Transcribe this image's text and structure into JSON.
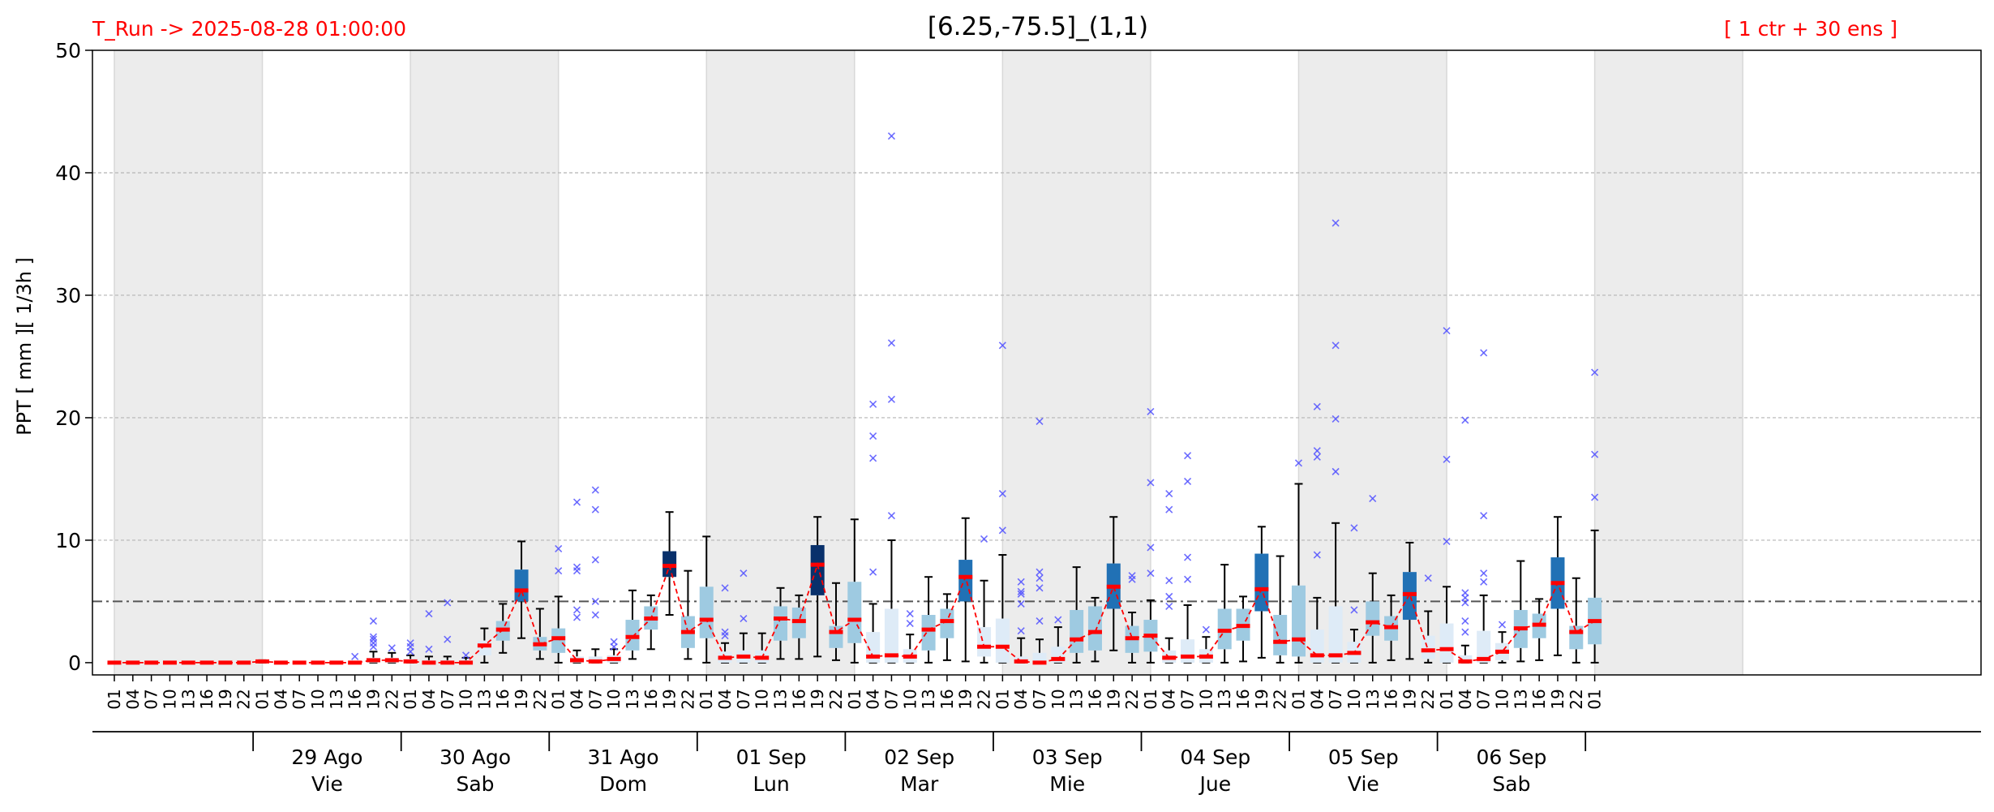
{
  "header": {
    "run_label": "T_Run -> 2025-08-28  01:00:00",
    "title": "[6.25,-75.5]_(1,1)",
    "members_label": "[ 1 ctr + 30 ens ]"
  },
  "colors": {
    "header_text": "#ff0000",
    "median": "#ff0000",
    "mean_line": "#ff0000",
    "outlier": "#5555ff",
    "night_shade": "#ececec",
    "threshold_line": "#555555",
    "box_light": "#deebf7",
    "box_mid": "#9ecae1",
    "box_dark": "#2171b5",
    "box_darkest": "#08306b"
  },
  "chart_data": {
    "type": "boxplot",
    "ylabel": "PPT  [ mm ][ 1/3h ]",
    "ylim": [
      -1,
      50
    ],
    "yticks": [
      0,
      10,
      20,
      30,
      40,
      50
    ],
    "grid": "horizontal-dashed",
    "threshold": 5,
    "hour_labels": [
      "01",
      "04",
      "07",
      "10",
      "13",
      "16",
      "19",
      "22"
    ],
    "start_hour_index": 0,
    "days": [
      {
        "date": "",
        "weekday": ""
      },
      {
        "date": "29 Ago",
        "weekday": "Vie"
      },
      {
        "date": "30 Ago",
        "weekday": "Sab"
      },
      {
        "date": "31 Ago",
        "weekday": "Dom"
      },
      {
        "date": "01 Sep",
        "weekday": "Lun"
      },
      {
        "date": "02 Sep",
        "weekday": "Mar"
      },
      {
        "date": "03 Sep",
        "weekday": "Mie"
      },
      {
        "date": "04 Sep",
        "weekday": "Jue"
      },
      {
        "date": "05 Sep",
        "weekday": "Vie"
      },
      {
        "date": "06 Sep",
        "weekday": "Sab"
      },
      {
        "date": "",
        "weekday": ""
      }
    ],
    "steps": [
      {
        "med": 0,
        "q1": 0,
        "q3": 0,
        "wlo": 0,
        "whi": 0,
        "out": []
      },
      {
        "med": 0,
        "q1": 0,
        "q3": 0,
        "wlo": 0,
        "whi": 0,
        "out": []
      },
      {
        "med": 0,
        "q1": 0,
        "q3": 0,
        "wlo": 0,
        "whi": 0,
        "out": []
      },
      {
        "med": 0,
        "q1": 0,
        "q3": 0,
        "wlo": 0,
        "whi": 0,
        "out": []
      },
      {
        "med": 0,
        "q1": 0,
        "q3": 0,
        "wlo": 0,
        "whi": 0,
        "out": []
      },
      {
        "med": 0,
        "q1": 0,
        "q3": 0,
        "wlo": 0,
        "whi": 0,
        "out": []
      },
      {
        "med": 0,
        "q1": 0,
        "q3": 0,
        "wlo": 0,
        "whi": 0,
        "out": []
      },
      {
        "med": 0,
        "q1": 0,
        "q3": 0,
        "wlo": 0,
        "whi": 0,
        "out": []
      },
      {
        "med": 0.1,
        "q1": 0,
        "q3": 0.1,
        "wlo": 0,
        "whi": 0.2,
        "out": []
      },
      {
        "med": 0,
        "q1": 0,
        "q3": 0,
        "wlo": 0,
        "whi": 0,
        "out": []
      },
      {
        "med": 0,
        "q1": 0,
        "q3": 0,
        "wlo": 0,
        "whi": 0,
        "out": []
      },
      {
        "med": 0,
        "q1": 0,
        "q3": 0,
        "wlo": 0,
        "whi": 0,
        "out": []
      },
      {
        "med": 0,
        "q1": 0,
        "q3": 0,
        "wlo": 0,
        "whi": 0,
        "out": []
      },
      {
        "med": 0,
        "q1": 0,
        "q3": 0,
        "wlo": 0,
        "whi": 0,
        "out": [
          0.5
        ]
      },
      {
        "med": 0.2,
        "q1": 0,
        "q3": 0.4,
        "wlo": 0,
        "whi": 0.9,
        "out": [
          1.3,
          1.6,
          1.9,
          2.1,
          3.4
        ]
      },
      {
        "med": 0.2,
        "q1": 0,
        "q3": 0.4,
        "wlo": 0,
        "whi": 0.8,
        "out": [
          1.2
        ]
      },
      {
        "med": 0.1,
        "q1": 0,
        "q3": 0.3,
        "wlo": 0,
        "whi": 0.6,
        "out": [
          0.9,
          1.3,
          1.6
        ]
      },
      {
        "med": 0,
        "q1": 0,
        "q3": 0.2,
        "wlo": 0,
        "whi": 0.5,
        "out": [
          1.1,
          4.0
        ]
      },
      {
        "med": 0,
        "q1": 0,
        "q3": 0.2,
        "wlo": 0,
        "whi": 0.5,
        "out": [
          1.9,
          4.9
        ]
      },
      {
        "med": 0,
        "q1": 0,
        "q3": 0.2,
        "wlo": 0,
        "whi": 0.4,
        "out": [
          0.6
        ]
      },
      {
        "med": 1.4,
        "q1": 0.6,
        "q3": 1.8,
        "wlo": 0,
        "whi": 2.8,
        "out": []
      },
      {
        "med": 2.7,
        "q1": 1.8,
        "q3": 3.4,
        "wlo": 0.8,
        "whi": 4.8,
        "out": []
      },
      {
        "med": 5.9,
        "q1": 5.0,
        "q3": 7.6,
        "wlo": 2.0,
        "whi": 9.9,
        "out": []
      },
      {
        "med": 1.5,
        "q1": 1.0,
        "q3": 2.1,
        "wlo": 0.3,
        "whi": 4.4,
        "out": []
      },
      {
        "med": 2.0,
        "q1": 0.8,
        "q3": 2.8,
        "wlo": 0,
        "whi": 5.4,
        "out": [
          7.5,
          9.3
        ]
      },
      {
        "med": 0.2,
        "q1": 0,
        "q3": 0.5,
        "wlo": 0,
        "whi": 1.0,
        "out": [
          3.7,
          4.3,
          7.5,
          7.8,
          13.1
        ]
      },
      {
        "med": 0.1,
        "q1": 0,
        "q3": 0.5,
        "wlo": 0,
        "whi": 1.1,
        "out": [
          3.9,
          5.0,
          8.4,
          12.5,
          14.1
        ]
      },
      {
        "med": 0.3,
        "q1": 0,
        "q3": 0.6,
        "wlo": 0,
        "whi": 1.1,
        "out": [
          1.3,
          1.7
        ]
      },
      {
        "med": 2.1,
        "q1": 1.0,
        "q3": 3.5,
        "wlo": 0.3,
        "whi": 5.9,
        "out": []
      },
      {
        "med": 3.6,
        "q1": 2.7,
        "q3": 4.6,
        "wlo": 1.1,
        "whi": 5.5,
        "out": []
      },
      {
        "med": 7.9,
        "q1": 7.0,
        "q3": 9.1,
        "wlo": 3.9,
        "whi": 12.3,
        "out": []
      },
      {
        "med": 2.5,
        "q1": 1.2,
        "q3": 3.8,
        "wlo": 0.3,
        "whi": 7.5,
        "out": []
      },
      {
        "med": 3.5,
        "q1": 2.0,
        "q3": 6.2,
        "wlo": 0,
        "whi": 10.3,
        "out": []
      },
      {
        "med": 0.4,
        "q1": 0,
        "q3": 0.9,
        "wlo": 0,
        "whi": 1.6,
        "out": [
          2.2,
          2.5,
          6.1
        ]
      },
      {
        "med": 0.5,
        "q1": 0,
        "q3": 1.0,
        "wlo": 0,
        "whi": 2.4,
        "out": [
          3.6,
          7.3
        ]
      },
      {
        "med": 0.4,
        "q1": 0,
        "q3": 1.0,
        "wlo": 0,
        "whi": 2.4,
        "out": []
      },
      {
        "med": 3.6,
        "q1": 1.8,
        "q3": 4.6,
        "wlo": 0.3,
        "whi": 6.1,
        "out": []
      },
      {
        "med": 3.4,
        "q1": 2.0,
        "q3": 4.5,
        "wlo": 0.3,
        "whi": 5.5,
        "out": []
      },
      {
        "med": 8.0,
        "q1": 5.5,
        "q3": 9.6,
        "wlo": 0.5,
        "whi": 11.9,
        "out": []
      },
      {
        "med": 2.5,
        "q1": 1.2,
        "q3": 3.0,
        "wlo": 0.2,
        "whi": 6.5,
        "out": []
      },
      {
        "med": 3.5,
        "q1": 1.6,
        "q3": 6.6,
        "wlo": 0,
        "whi": 11.7,
        "out": []
      },
      {
        "med": 0.5,
        "q1": 0,
        "q3": 2.5,
        "wlo": 0,
        "whi": 4.8,
        "out": [
          7.4,
          16.7,
          18.5,
          21.1
        ]
      },
      {
        "med": 0.6,
        "q1": 0,
        "q3": 4.4,
        "wlo": 0,
        "whi": 10.0,
        "out": [
          12.0,
          21.5,
          26.1,
          43.0
        ]
      },
      {
        "med": 0.5,
        "q1": 0,
        "q3": 1.1,
        "wlo": 0,
        "whi": 2.3,
        "out": [
          3.2,
          4.0
        ]
      },
      {
        "med": 2.7,
        "q1": 1.0,
        "q3": 3.9,
        "wlo": 0,
        "whi": 7.0,
        "out": []
      },
      {
        "med": 3.4,
        "q1": 2.0,
        "q3": 4.4,
        "wlo": 0.2,
        "whi": 5.6,
        "out": []
      },
      {
        "med": 7.0,
        "q1": 5.0,
        "q3": 8.4,
        "wlo": 0.1,
        "whi": 11.8,
        "out": []
      },
      {
        "med": 1.3,
        "q1": 0.5,
        "q3": 2.9,
        "wlo": 0,
        "whi": 6.7,
        "out": [
          10.1
        ]
      },
      {
        "med": 1.3,
        "q1": 0,
        "q3": 3.6,
        "wlo": 0,
        "whi": 8.8,
        "out": [
          10.8,
          13.8,
          25.9
        ]
      },
      {
        "med": 0.1,
        "q1": 0,
        "q3": 0.5,
        "wlo": 0,
        "whi": 2.0,
        "out": [
          2.6,
          4.8,
          5.6,
          5.8,
          6.6
        ]
      },
      {
        "med": 0,
        "q1": 0,
        "q3": 0.8,
        "wlo": 0,
        "whi": 1.9,
        "out": [
          3.4,
          6.1,
          6.9,
          7.4,
          19.7
        ]
      },
      {
        "med": 0.3,
        "q1": 0,
        "q3": 1.3,
        "wlo": 0,
        "whi": 2.9,
        "out": [
          3.5
        ]
      },
      {
        "med": 1.9,
        "q1": 0.8,
        "q3": 4.3,
        "wlo": 0,
        "whi": 7.8,
        "out": []
      },
      {
        "med": 2.5,
        "q1": 1.0,
        "q3": 4.6,
        "wlo": 0.1,
        "whi": 5.3,
        "out": []
      },
      {
        "med": 6.2,
        "q1": 4.4,
        "q3": 8.1,
        "wlo": 1.0,
        "whi": 11.9,
        "out": []
      },
      {
        "med": 2.0,
        "q1": 0.8,
        "q3": 3.0,
        "wlo": 0,
        "whi": 4.1,
        "out": [
          6.8,
          7.1
        ]
      },
      {
        "med": 2.2,
        "q1": 0.9,
        "q3": 3.5,
        "wlo": 0,
        "whi": 5.1,
        "out": [
          7.3,
          9.4,
          14.7,
          20.5
        ]
      },
      {
        "med": 0.4,
        "q1": 0,
        "q3": 1.0,
        "wlo": 0,
        "whi": 2.0,
        "out": [
          4.6,
          5.4,
          6.7,
          12.5,
          13.8
        ]
      },
      {
        "med": 0.5,
        "q1": 0,
        "q3": 1.9,
        "wlo": 0,
        "whi": 4.7,
        "out": [
          6.8,
          8.6,
          14.8,
          16.9
        ]
      },
      {
        "med": 0.5,
        "q1": 0,
        "q3": 1.1,
        "wlo": 0,
        "whi": 2.1,
        "out": [
          2.7
        ]
      },
      {
        "med": 2.6,
        "q1": 1.1,
        "q3": 4.4,
        "wlo": 0,
        "whi": 8.0,
        "out": []
      },
      {
        "med": 3.0,
        "q1": 1.8,
        "q3": 4.4,
        "wlo": 0.1,
        "whi": 5.4,
        "out": []
      },
      {
        "med": 6.0,
        "q1": 4.2,
        "q3": 8.9,
        "wlo": 0.4,
        "whi": 11.1,
        "out": []
      },
      {
        "med": 1.7,
        "q1": 0.6,
        "q3": 3.9,
        "wlo": 0,
        "whi": 8.7,
        "out": []
      },
      {
        "med": 1.9,
        "q1": 0.5,
        "q3": 6.3,
        "wlo": 0,
        "whi": 14.6,
        "out": [
          16.3
        ]
      },
      {
        "med": 0.6,
        "q1": 0,
        "q3": 2.7,
        "wlo": 0,
        "whi": 5.3,
        "out": [
          8.8,
          16.8,
          17.3,
          20.9
        ]
      },
      {
        "med": 0.6,
        "q1": 0,
        "q3": 4.6,
        "wlo": 0,
        "whi": 11.4,
        "out": [
          15.6,
          19.9,
          25.9,
          35.9
        ]
      },
      {
        "med": 0.8,
        "q1": 0,
        "q3": 1.7,
        "wlo": 0,
        "whi": 2.7,
        "out": [
          4.3,
          11.0
        ]
      },
      {
        "med": 3.3,
        "q1": 2.2,
        "q3": 5.0,
        "wlo": 0,
        "whi": 7.3,
        "out": [
          13.4
        ]
      },
      {
        "med": 2.9,
        "q1": 1.8,
        "q3": 3.8,
        "wlo": 0.2,
        "whi": 5.5,
        "out": []
      },
      {
        "med": 5.6,
        "q1": 3.5,
        "q3": 7.4,
        "wlo": 0.3,
        "whi": 9.8,
        "out": []
      },
      {
        "med": 1.0,
        "q1": 0.3,
        "q3": 2.2,
        "wlo": 0,
        "whi": 4.2,
        "out": [
          6.9
        ]
      },
      {
        "med": 1.1,
        "q1": 0,
        "q3": 3.2,
        "wlo": 0,
        "whi": 6.2,
        "out": [
          9.9,
          16.6,
          27.1
        ]
      },
      {
        "med": 0.1,
        "q1": 0,
        "q3": 0.6,
        "wlo": 0,
        "whi": 1.4,
        "out": [
          2.5,
          3.4,
          4.9,
          5.3,
          5.7,
          19.8
        ]
      },
      {
        "med": 0.3,
        "q1": 0,
        "q3": 2.6,
        "wlo": 0,
        "whi": 5.5,
        "out": [
          6.6,
          7.3,
          12.0,
          25.3
        ]
      },
      {
        "med": 0.9,
        "q1": 0.2,
        "q3": 1.6,
        "wlo": 0,
        "whi": 2.5,
        "out": [
          3.1
        ]
      },
      {
        "med": 2.8,
        "q1": 1.2,
        "q3": 4.3,
        "wlo": 0.1,
        "whi": 8.3,
        "out": []
      },
      {
        "med": 3.1,
        "q1": 2.0,
        "q3": 4.0,
        "wlo": 0.2,
        "whi": 5.2,
        "out": []
      },
      {
        "med": 6.5,
        "q1": 4.4,
        "q3": 8.6,
        "wlo": 0.6,
        "whi": 11.9,
        "out": []
      },
      {
        "med": 2.5,
        "q1": 1.1,
        "q3": 3.0,
        "wlo": 0,
        "whi": 6.9,
        "out": []
      },
      {
        "med": 3.4,
        "q1": 1.5,
        "q3": 5.3,
        "wlo": 0,
        "whi": 10.8,
        "out": [
          13.5,
          17.0,
          23.7
        ]
      }
    ]
  }
}
